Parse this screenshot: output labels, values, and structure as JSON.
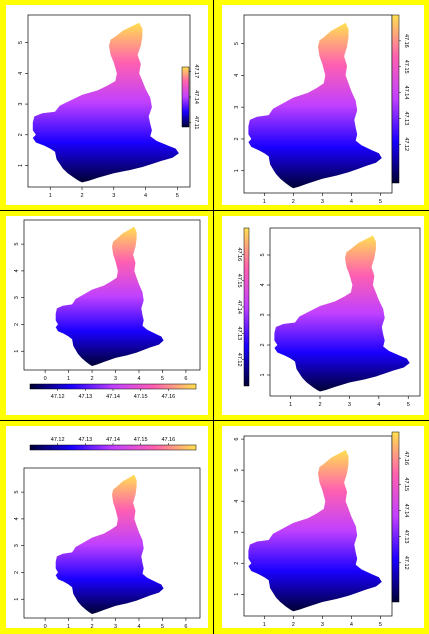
{
  "colors": {
    "background": "#ffff00",
    "ramp": [
      "#000033",
      "#1a00ff",
      "#c040ff",
      "#ff60b0",
      "#ffe050"
    ]
  },
  "chart_data": [
    {
      "type": "heatmap",
      "layout": "legend-right-short",
      "x_ticks": [
        "1",
        "2",
        "3",
        "4",
        "5"
      ],
      "y_ticks": [
        "1",
        "2",
        "3",
        "4",
        "5"
      ],
      "legend_ticks": [
        "47.11",
        "47.14",
        "47.17"
      ],
      "legend_range": [
        47.105,
        47.175
      ],
      "xlim": [
        0.3,
        5.4
      ],
      "ylim": [
        0.3,
        5.9
      ]
    },
    {
      "type": "heatmap",
      "layout": "legend-right-tall",
      "x_ticks": [
        "1",
        "2",
        "3",
        "4",
        "5"
      ],
      "y_ticks": [
        "1",
        "2",
        "3",
        "4",
        "5"
      ],
      "legend_ticks": [
        "47.12",
        "47.13",
        "47.14",
        "47.15",
        "47.16"
      ],
      "legend_range": [
        47.105,
        47.17
      ],
      "xlim": [
        0.3,
        5.4
      ],
      "ylim": [
        0.3,
        5.9
      ]
    },
    {
      "type": "heatmap",
      "layout": "legend-bottom",
      "x_ticks": [
        "0",
        "1",
        "2",
        "3",
        "4",
        "5",
        "6"
      ],
      "y_ticks": [
        "1",
        "2",
        "3",
        "4",
        "5"
      ],
      "legend_ticks": [
        "47.12",
        "47.13",
        "47.14",
        "47.15",
        "47.16"
      ],
      "legend_range": [
        47.11,
        47.17
      ],
      "xlim": [
        -0.9,
        6.6
      ],
      "ylim": [
        0.3,
        5.9
      ]
    },
    {
      "type": "heatmap",
      "layout": "legend-left",
      "x_ticks": [
        "1",
        "2",
        "3",
        "4",
        "5"
      ],
      "y_ticks": [
        "1",
        "2",
        "3",
        "4",
        "5"
      ],
      "legend_ticks": [
        "47.12",
        "47.13",
        "47.14",
        "47.15",
        "47.16"
      ],
      "legend_range": [
        47.11,
        47.17
      ],
      "xlim": [
        0.3,
        5.4
      ],
      "ylim": [
        0.3,
        5.9
      ]
    },
    {
      "type": "heatmap",
      "layout": "legend-top",
      "x_ticks": [
        "0",
        "1",
        "2",
        "3",
        "4",
        "5",
        "6"
      ],
      "y_ticks": [
        "1",
        "2",
        "3",
        "4",
        "5"
      ],
      "legend_ticks": [
        "47.12",
        "47.13",
        "47.14",
        "47.15",
        "47.16"
      ],
      "legend_range": [
        47.11,
        47.17
      ],
      "xlim": [
        -0.9,
        6.6
      ],
      "ylim": [
        0.3,
        5.9
      ]
    },
    {
      "type": "heatmap",
      "layout": "legend-right-tall",
      "x_ticks": [
        "1",
        "2",
        "3",
        "4",
        "5"
      ],
      "y_ticks": [
        "1",
        "2",
        "3",
        "4",
        "5",
        "6"
      ],
      "legend_ticks": [
        "47.12",
        "47.13",
        "47.14",
        "47.15",
        "47.16"
      ],
      "legend_range": [
        47.105,
        47.17
      ],
      "xlim": [
        0.3,
        5.4
      ],
      "ylim": [
        0.3,
        6.1
      ]
    }
  ]
}
